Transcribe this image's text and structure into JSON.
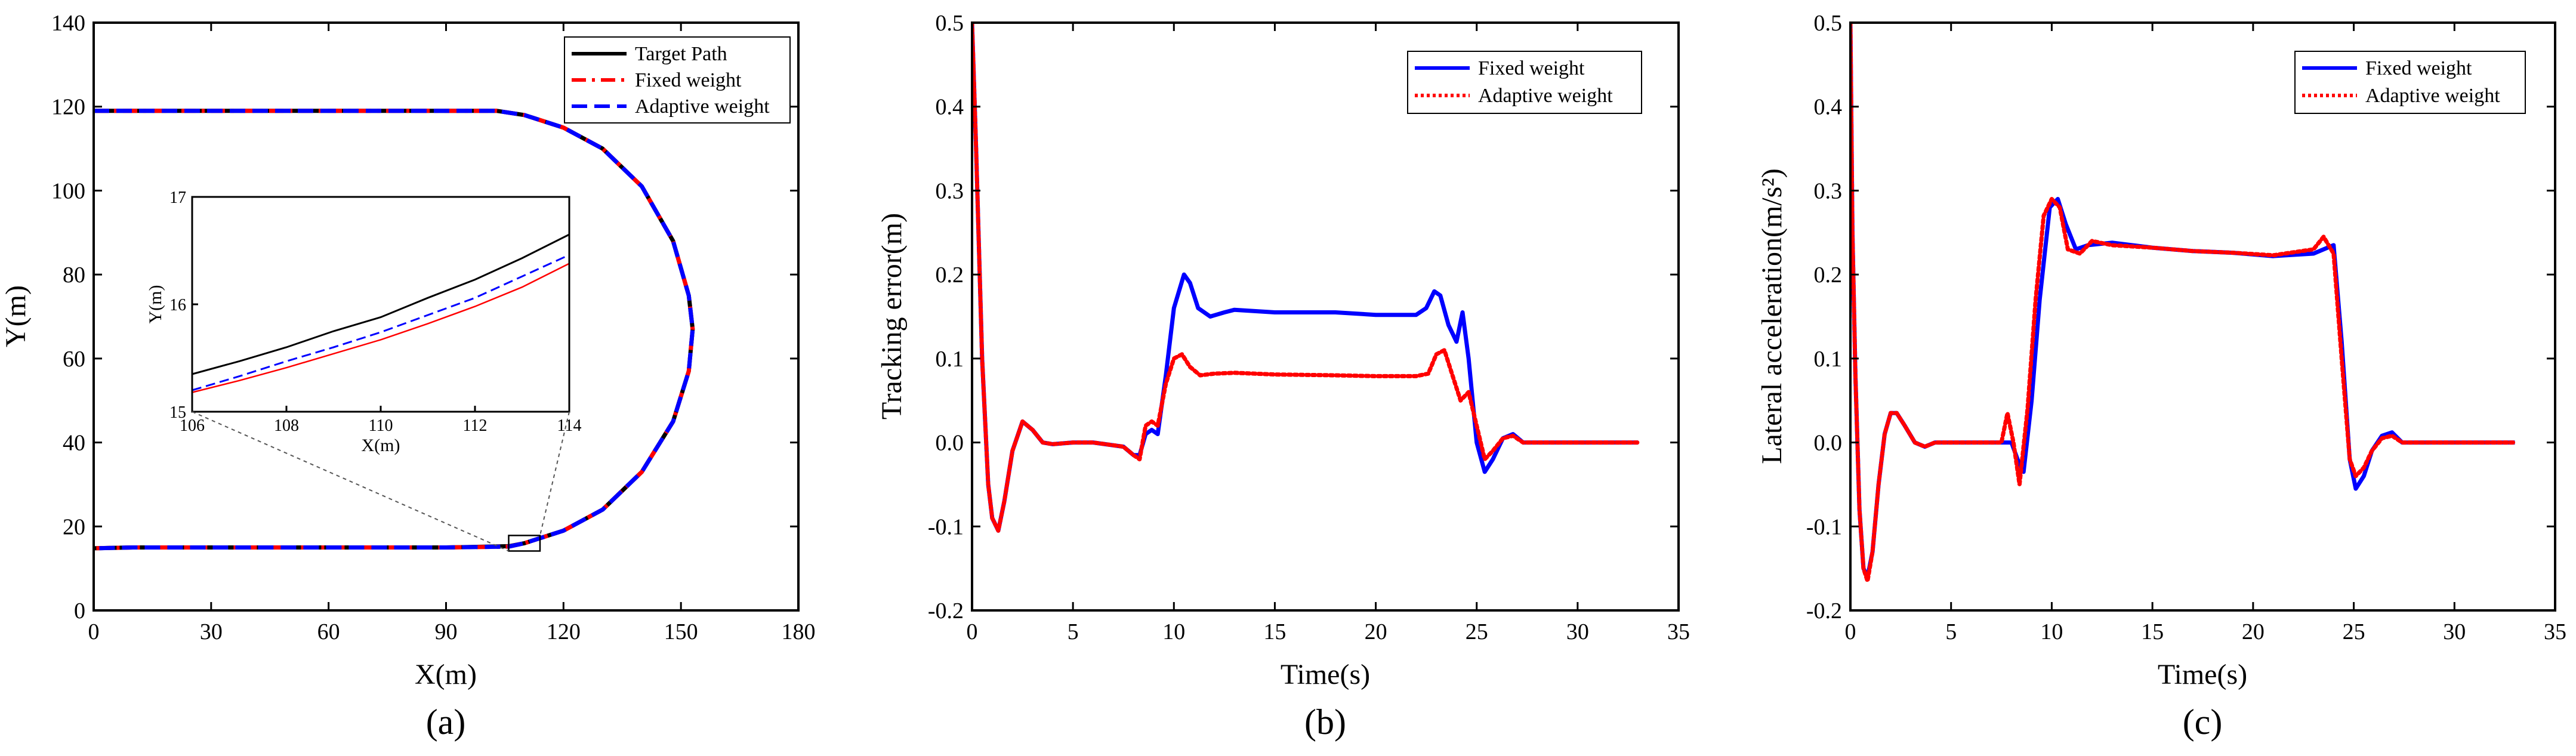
{
  "colors": {
    "black": "#000000",
    "red": "#ff0000",
    "blue": "#0000ff"
  },
  "chart_data": [
    {
      "id": "a",
      "type": "line",
      "caption": "(a)",
      "xlabel": "X(m)",
      "ylabel": "Y(m)",
      "xlim": [
        0,
        180
      ],
      "ylim": [
        0,
        140
      ],
      "xticks": [
        0,
        30,
        60,
        90,
        120,
        150,
        180
      ],
      "yticks": [
        0,
        20,
        40,
        60,
        80,
        100,
        120,
        140
      ],
      "legend": [
        "Target Path",
        "Fixed weight",
        "Adaptive weight"
      ],
      "legend_position": "top-right",
      "series": [
        {
          "name": "Target Path",
          "color": "#000000",
          "style": "solid",
          "x": [
            0,
            10,
            30,
            60,
            90,
            103,
            110,
            120,
            130,
            140,
            148,
            152,
            153,
            152,
            148,
            140,
            130,
            120,
            110,
            106,
            90,
            60,
            30,
            10,
            0
          ],
          "y": [
            119,
            119,
            119,
            119,
            119,
            119,
            118,
            115,
            110,
            101,
            88,
            75,
            67,
            57,
            45,
            33,
            24,
            19,
            16,
            15.3,
            15,
            15,
            15,
            15,
            14.8
          ]
        },
        {
          "name": "Fixed weight",
          "color": "#ff0000",
          "style": "dashdot",
          "x": [
            0,
            10,
            30,
            60,
            90,
            103,
            110,
            120,
            130,
            140,
            148,
            152,
            153,
            152,
            148,
            140,
            130,
            120,
            110,
            106,
            90,
            60,
            30,
            10,
            0
          ],
          "y": [
            119,
            119,
            119,
            119,
            119,
            119,
            118,
            115,
            110,
            101,
            88,
            75,
            67,
            57,
            45,
            33,
            24,
            19,
            16,
            15.2,
            15,
            15,
            15,
            15,
            14.8
          ]
        },
        {
          "name": "Adaptive weight",
          "color": "#0000ff",
          "style": "dashed",
          "x": [
            0,
            10,
            30,
            60,
            90,
            103,
            110,
            120,
            130,
            140,
            148,
            152,
            153,
            152,
            148,
            140,
            130,
            120,
            110,
            106,
            90,
            60,
            30,
            10,
            0
          ],
          "y": [
            119,
            119,
            119,
            119,
            119,
            119,
            118,
            115,
            110,
            101,
            88,
            75,
            67,
            57,
            45,
            33,
            24,
            19,
            16,
            15.2,
            15,
            15,
            15,
            15,
            14.8
          ]
        }
      ],
      "inset": {
        "xlabel": "X(m)",
        "ylabel": "Y(m)",
        "xlim": [
          106,
          114
        ],
        "ylim": [
          15,
          17
        ],
        "xticks": [
          106,
          108,
          110,
          112,
          114
        ],
        "yticks": [
          15,
          16,
          17
        ],
        "zoom_box": {
          "x": [
            106,
            114
          ],
          "y": [
            15,
            17
          ]
        },
        "series": [
          {
            "name": "Target Path",
            "color": "#000000",
            "style": "solid",
            "x": [
              106,
              107,
              108,
              109,
              110,
              111,
              112,
              113,
              114
            ],
            "y": [
              15.35,
              15.47,
              15.6,
              15.75,
              15.88,
              16.06,
              16.23,
              16.43,
              16.65
            ]
          },
          {
            "name": "Adaptive weight",
            "color": "#0000ff",
            "style": "dashed",
            "x": [
              106,
              107,
              108,
              109,
              110,
              111,
              112,
              113,
              114
            ],
            "y": [
              15.2,
              15.33,
              15.47,
              15.6,
              15.74,
              15.9,
              16.06,
              16.26,
              16.46
            ]
          },
          {
            "name": "Fixed weight",
            "color": "#ff0000",
            "style": "solid-thin",
            "x": [
              106,
              107,
              108,
              109,
              110,
              111,
              112,
              113,
              114
            ],
            "y": [
              15.18,
              15.29,
              15.41,
              15.54,
              15.67,
              15.82,
              15.98,
              16.16,
              16.38
            ]
          }
        ]
      }
    },
    {
      "id": "b",
      "type": "line",
      "caption": "(b)",
      "xlabel": "Time(s)",
      "ylabel": "Tracking error(m)",
      "xlim": [
        0,
        35
      ],
      "ylim": [
        -0.2,
        0.5
      ],
      "xticks": [
        0,
        5,
        10,
        15,
        20,
        25,
        30,
        35
      ],
      "yticks": [
        -0.2,
        -0.1,
        0.0,
        0.1,
        0.2,
        0.3,
        0.4,
        0.5
      ],
      "ytick_labels": [
        "-0.2",
        "-0.1",
        "0.0",
        "0.1",
        "0.2",
        "0.3",
        "0.4",
        "0.5"
      ],
      "legend": [
        "Fixed weight",
        "Adaptive weight"
      ],
      "legend_position": "top-right",
      "series": [
        {
          "name": "Fixed weight",
          "color": "#0000ff",
          "style": "solid",
          "x": [
            0,
            0.2,
            0.5,
            0.8,
            1.0,
            1.3,
            1.6,
            2.0,
            2.5,
            3.0,
            3.5,
            4.0,
            5.0,
            6.0,
            7.5,
            8.0,
            8.3,
            8.6,
            8.9,
            9.2,
            9.6,
            10.0,
            10.5,
            10.8,
            11.2,
            11.8,
            12.5,
            13.0,
            15.0,
            18.0,
            20.0,
            22.0,
            22.5,
            22.9,
            23.2,
            23.6,
            24.0,
            24.3,
            24.6,
            25.0,
            25.4,
            25.8,
            26.3,
            26.8,
            27.3,
            28.0,
            30.0,
            33.0
          ],
          "y": [
            0.5,
            0.35,
            0.1,
            -0.05,
            -0.09,
            -0.105,
            -0.07,
            -0.01,
            0.025,
            0.015,
            0.0,
            -0.002,
            0.0,
            0.0,
            -0.005,
            -0.015,
            -0.015,
            0.01,
            0.015,
            0.01,
            0.08,
            0.16,
            0.2,
            0.19,
            0.16,
            0.15,
            0.155,
            0.158,
            0.155,
            0.155,
            0.152,
            0.152,
            0.16,
            0.18,
            0.175,
            0.14,
            0.12,
            0.155,
            0.1,
            0.0,
            -0.035,
            -0.02,
            0.005,
            0.01,
            0.0,
            0.0,
            0.0,
            0.0
          ]
        },
        {
          "name": "Adaptive weight",
          "color": "#ff0000",
          "style": "dotted",
          "x": [
            0,
            0.2,
            0.5,
            0.8,
            1.0,
            1.3,
            1.6,
            2.0,
            2.5,
            3.0,
            3.5,
            4.0,
            5.0,
            6.0,
            7.5,
            8.0,
            8.3,
            8.6,
            8.9,
            9.2,
            9.6,
            10.0,
            10.4,
            10.8,
            11.3,
            12.0,
            13.0,
            15.0,
            18.0,
            20.0,
            22.0,
            22.6,
            23.0,
            23.4,
            23.8,
            24.2,
            24.6,
            25.0,
            25.4,
            25.8,
            26.3,
            26.8,
            27.3,
            28.0,
            30.0,
            33.0
          ],
          "y": [
            0.5,
            0.35,
            0.1,
            -0.05,
            -0.09,
            -0.105,
            -0.07,
            -0.01,
            0.025,
            0.015,
            0.0,
            -0.002,
            0.0,
            0.0,
            -0.005,
            -0.015,
            -0.02,
            0.02,
            0.025,
            0.02,
            0.07,
            0.1,
            0.105,
            0.09,
            0.08,
            0.082,
            0.083,
            0.081,
            0.08,
            0.079,
            0.079,
            0.082,
            0.105,
            0.11,
            0.08,
            0.05,
            0.06,
            0.02,
            -0.02,
            -0.01,
            0.005,
            0.008,
            0.0,
            0.0,
            0.0,
            0.0
          ]
        }
      ]
    },
    {
      "id": "c",
      "type": "line",
      "caption": "(c)",
      "xlabel": "Time(s)",
      "ylabel": "Lateral acceleration(m/s²)",
      "xlim": [
        0,
        35
      ],
      "ylim": [
        -0.2,
        0.5
      ],
      "xticks": [
        0,
        5,
        10,
        15,
        20,
        25,
        30,
        35
      ],
      "yticks": [
        -0.2,
        -0.1,
        0.0,
        0.1,
        0.2,
        0.3,
        0.4,
        0.5
      ],
      "ytick_labels": [
        "-0.2",
        "-0.1",
        "0.0",
        "0.1",
        "0.2",
        "0.3",
        "0.4",
        "0.5"
      ],
      "legend": [
        "Fixed weight",
        "Adaptive weight"
      ],
      "legend_position": "top-right",
      "series": [
        {
          "name": "Fixed weight",
          "color": "#0000ff",
          "style": "solid",
          "x": [
            0,
            0.1,
            0.25,
            0.45,
            0.65,
            0.85,
            1.1,
            1.4,
            1.7,
            2.0,
            2.3,
            2.7,
            3.2,
            3.7,
            4.2,
            5.0,
            6.0,
            7.5,
            8.0,
            8.3,
            8.6,
            9.0,
            9.4,
            9.9,
            10.3,
            10.7,
            11.2,
            11.8,
            13.0,
            15.0,
            17.0,
            19.0,
            21.0,
            23.0,
            23.5,
            24.0,
            24.4,
            24.8,
            25.1,
            25.5,
            25.9,
            26.4,
            26.9,
            27.4,
            28.0,
            30.0,
            33.0
          ],
          "y": [
            0.5,
            0.25,
            0.08,
            -0.08,
            -0.15,
            -0.16,
            -0.13,
            -0.05,
            0.01,
            0.035,
            0.035,
            0.02,
            0.0,
            -0.005,
            0.0,
            0.0,
            0.0,
            0.0,
            0.0,
            -0.02,
            -0.035,
            0.05,
            0.17,
            0.28,
            0.29,
            0.26,
            0.23,
            0.235,
            0.238,
            0.232,
            0.228,
            0.226,
            0.222,
            0.225,
            0.23,
            0.235,
            0.12,
            -0.02,
            -0.055,
            -0.04,
            -0.01,
            0.008,
            0.012,
            0.0,
            0.0,
            0.0,
            0.0
          ]
        },
        {
          "name": "Adaptive weight",
          "color": "#ff0000",
          "style": "dotted",
          "x": [
            0,
            0.1,
            0.25,
            0.45,
            0.65,
            0.85,
            1.1,
            1.4,
            1.7,
            2.0,
            2.3,
            2.7,
            3.2,
            3.7,
            4.2,
            5.0,
            6.0,
            7.5,
            7.8,
            8.1,
            8.4,
            8.8,
            9.2,
            9.6,
            10.0,
            10.4,
            10.8,
            11.4,
            12.0,
            13.0,
            15.0,
            17.0,
            19.0,
            21.0,
            23.0,
            23.5,
            24.0,
            24.4,
            24.8,
            25.1,
            25.5,
            25.9,
            26.4,
            26.9,
            27.4,
            28.0,
            30.0,
            33.0
          ],
          "y": [
            0.5,
            0.25,
            0.08,
            -0.08,
            -0.15,
            -0.165,
            -0.13,
            -0.05,
            0.01,
            0.035,
            0.035,
            0.02,
            0.0,
            -0.005,
            0.0,
            0.0,
            0.0,
            0.0,
            0.035,
            0.0,
            -0.05,
            0.04,
            0.17,
            0.27,
            0.29,
            0.28,
            0.23,
            0.225,
            0.24,
            0.235,
            0.232,
            0.228,
            0.226,
            0.223,
            0.23,
            0.245,
            0.225,
            0.1,
            -0.02,
            -0.04,
            -0.03,
            -0.01,
            0.005,
            0.008,
            0.0,
            0.0,
            0.0,
            0.0
          ]
        }
      ]
    }
  ]
}
